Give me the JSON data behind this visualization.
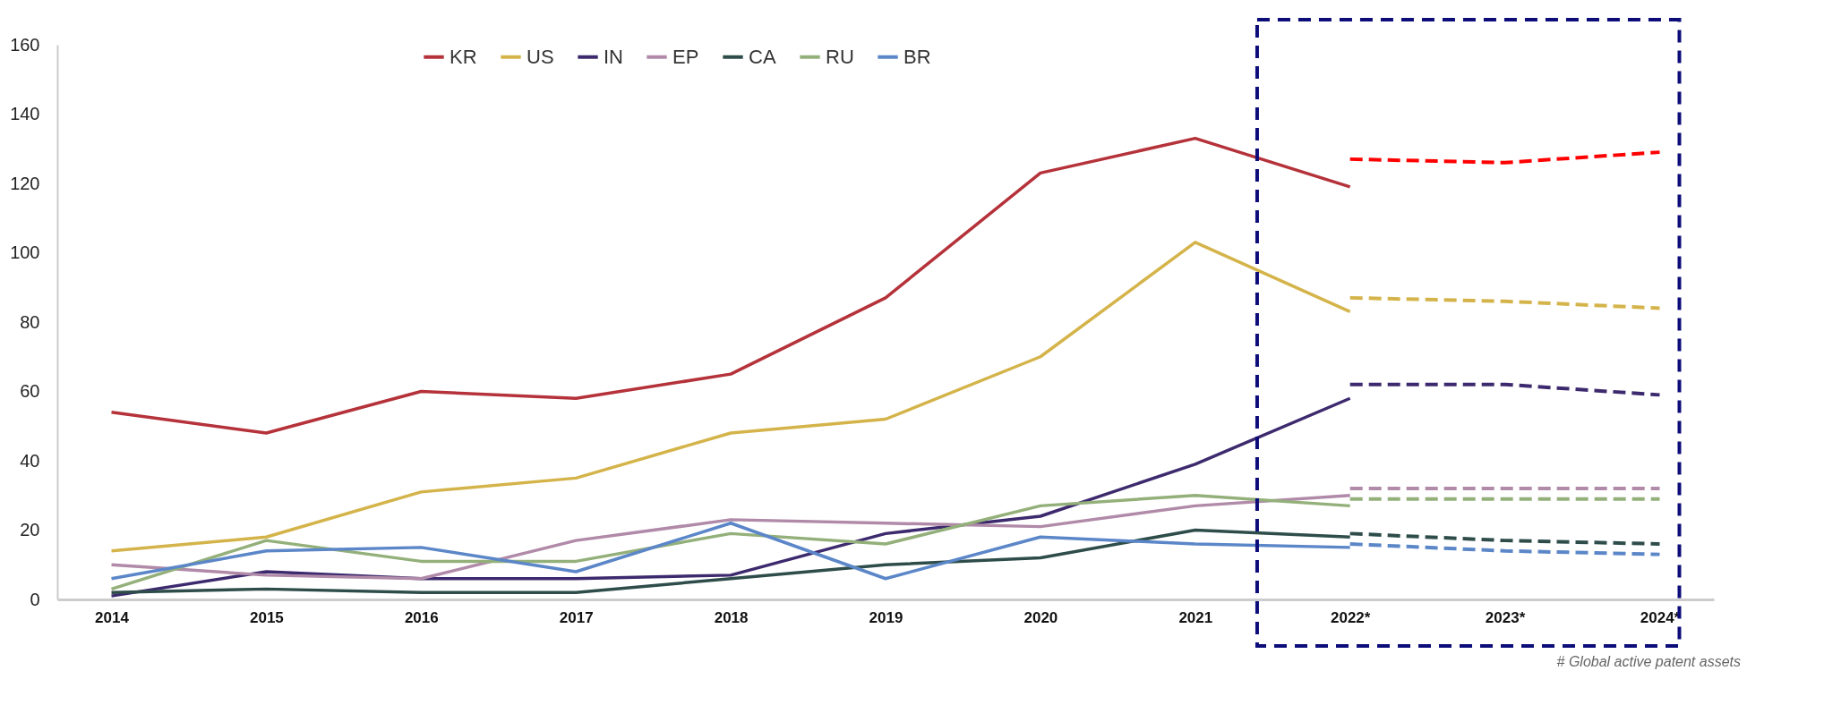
{
  "chart_data": {
    "type": "line",
    "categories": [
      "2014",
      "2015",
      "2016",
      "2017",
      "2018",
      "2019",
      "2020",
      "2021",
      "2022*",
      "2023*",
      "2024*"
    ],
    "series": [
      {
        "name": "KR",
        "color": "#b5323a",
        "values": [
          54,
          48,
          60,
          58,
          65,
          87,
          123,
          133,
          119,
          null,
          null
        ]
      },
      {
        "name": "US",
        "color": "#d4b44a",
        "values": [
          14,
          18,
          31,
          35,
          48,
          52,
          70,
          103,
          83,
          null,
          null
        ]
      },
      {
        "name": "IN",
        "color": "#3d2a6e",
        "values": [
          1,
          8,
          6,
          6,
          7,
          19,
          24,
          39,
          58,
          null,
          null
        ]
      },
      {
        "name": "EP",
        "color": "#b08aa8",
        "values": [
          10,
          7,
          6,
          17,
          23,
          22,
          21,
          27,
          30,
          null,
          null
        ]
      },
      {
        "name": "CA",
        "color": "#2e4d4a",
        "values": [
          2,
          3,
          2,
          2,
          6,
          10,
          12,
          20,
          18,
          null,
          null
        ]
      },
      {
        "name": "RU",
        "color": "#94b07a",
        "values": [
          3,
          17,
          11,
          11,
          19,
          16,
          27,
          30,
          27,
          null,
          null
        ]
      },
      {
        "name": "BR",
        "color": "#5b86c8",
        "values": [
          6,
          14,
          15,
          8,
          22,
          6,
          18,
          16,
          15,
          null,
          null
        ]
      },
      {
        "color": "#ff0000",
        "line_style": "dashed",
        "values": [
          null,
          null,
          null,
          null,
          null,
          null,
          null,
          null,
          127,
          126,
          129
        ]
      },
      {
        "color": "#d4b44a",
        "line_style": "dashed",
        "values": [
          null,
          null,
          null,
          null,
          null,
          null,
          null,
          null,
          87,
          86,
          84
        ]
      },
      {
        "color": "#3d2a6e",
        "line_style": "dashed",
        "values": [
          null,
          null,
          null,
          null,
          null,
          null,
          null,
          null,
          62,
          62,
          59
        ]
      },
      {
        "color": "#b08aa8",
        "line_style": "dashed",
        "values": [
          null,
          null,
          null,
          null,
          null,
          null,
          null,
          null,
          32,
          32,
          32
        ]
      },
      {
        "color": "#94b07a",
        "line_style": "dashed",
        "values": [
          null,
          null,
          null,
          null,
          null,
          null,
          null,
          null,
          29,
          29,
          29
        ]
      },
      {
        "color": "#2e4d4a",
        "line_style": "dashed",
        "values": [
          null,
          null,
          null,
          null,
          null,
          null,
          null,
          null,
          19,
          17,
          16
        ]
      },
      {
        "color": "#5b86c8",
        "line_style": "dashed",
        "values": [
          null,
          null,
          null,
          null,
          null,
          null,
          null,
          null,
          16,
          14,
          13
        ]
      }
    ],
    "ylim": [
      0,
      160
    ],
    "yticks": [
      0,
      20,
      40,
      60,
      80,
      100,
      120,
      140,
      160
    ],
    "grid": false,
    "legend": "top",
    "line_style": "solid",
    "marker": "none",
    "annotations": [
      "# Global active patent assets"
    ]
  }
}
